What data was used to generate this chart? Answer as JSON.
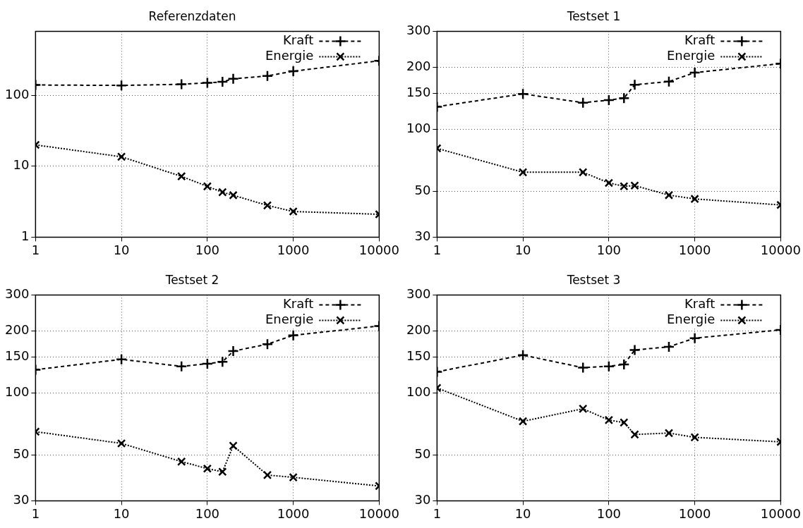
{
  "chart_data": [
    {
      "type": "line",
      "title": "Referenzdaten",
      "x": [
        1,
        10,
        50,
        100,
        150,
        200,
        500,
        1000,
        10000
      ],
      "xlim": [
        1,
        10000
      ],
      "xticks": [
        1,
        10,
        100,
        1000,
        10000
      ],
      "ylim": [
        1,
        800
      ],
      "yticks": [
        1,
        10,
        100
      ],
      "log": "xy",
      "grid": true,
      "legend": "top right",
      "series": [
        {
          "name": "Kraft",
          "color": "#000000",
          "marker": "plus",
          "line_style": "dashed",
          "values": [
            140,
            138,
            143,
            150,
            155,
            171,
            188,
            219,
            307
          ]
        },
        {
          "name": "Energie",
          "color": "#000000",
          "marker": "cross",
          "line_style": "dotted",
          "values": [
            20,
            13.6,
            7.2,
            5.2,
            4.3,
            3.9,
            2.8,
            2.3,
            2.1
          ]
        }
      ]
    },
    {
      "type": "line",
      "title": "Testset 1",
      "x": [
        1,
        10,
        50,
        100,
        150,
        200,
        500,
        1000,
        10000
      ],
      "xlim": [
        1,
        10000
      ],
      "xticks": [
        1,
        10,
        100,
        1000,
        10000
      ],
      "ylim": [
        30,
        300
      ],
      "yticks": [
        30,
        50,
        100,
        150,
        200,
        300
      ],
      "log": "xy",
      "grid": true,
      "legend": "top right",
      "series": [
        {
          "name": "Kraft",
          "color": "#000000",
          "marker": "plus",
          "line_style": "dashed",
          "values": [
            129,
            149,
            135,
            139,
            142,
            165,
            171,
            189,
            209
          ]
        },
        {
          "name": "Energie",
          "color": "#000000",
          "marker": "cross",
          "line_style": "dotted",
          "values": [
            81,
            62,
            62,
            55,
            53,
            53.4,
            48,
            46,
            43
          ]
        }
      ]
    },
    {
      "type": "line",
      "title": "Testset 2",
      "x": [
        1,
        10,
        50,
        100,
        150,
        200,
        500,
        1000,
        10000
      ],
      "xlim": [
        1,
        10000
      ],
      "xticks": [
        1,
        10,
        100,
        1000,
        10000
      ],
      "ylim": [
        30,
        300
      ],
      "yticks": [
        30,
        50,
        100,
        150,
        200,
        300
      ],
      "log": "xy",
      "grid": true,
      "legend": "top right",
      "series": [
        {
          "name": "Kraft",
          "color": "#000000",
          "marker": "plus",
          "line_style": "dashed",
          "values": [
            130,
            146,
            135,
            139,
            142,
            160,
            173,
            191,
            212
          ]
        },
        {
          "name": "Energie",
          "color": "#000000",
          "marker": "cross",
          "line_style": "dotted",
          "values": [
            65,
            57,
            46.5,
            43,
            41.5,
            55.5,
            40,
            39,
            35.4
          ]
        }
      ]
    },
    {
      "type": "line",
      "title": "Testset 3",
      "x": [
        1,
        10,
        50,
        100,
        150,
        200,
        500,
        1000,
        10000
      ],
      "xlim": [
        1,
        10000
      ],
      "xticks": [
        1,
        10,
        100,
        1000,
        10000
      ],
      "ylim": [
        30,
        300
      ],
      "yticks": [
        30,
        50,
        100,
        150,
        200,
        300
      ],
      "log": "xy",
      "grid": true,
      "legend": "top right",
      "series": [
        {
          "name": "Kraft",
          "color": "#000000",
          "marker": "plus",
          "line_style": "dashed",
          "values": [
            127,
            153,
            133,
            135,
            138,
            162,
            168,
            185,
            203
          ]
        },
        {
          "name": "Energie",
          "color": "#000000",
          "marker": "cross",
          "line_style": "dotted",
          "values": [
            106,
            73,
            84,
            74,
            72,
            63,
            64,
            61,
            58
          ]
        }
      ]
    }
  ]
}
